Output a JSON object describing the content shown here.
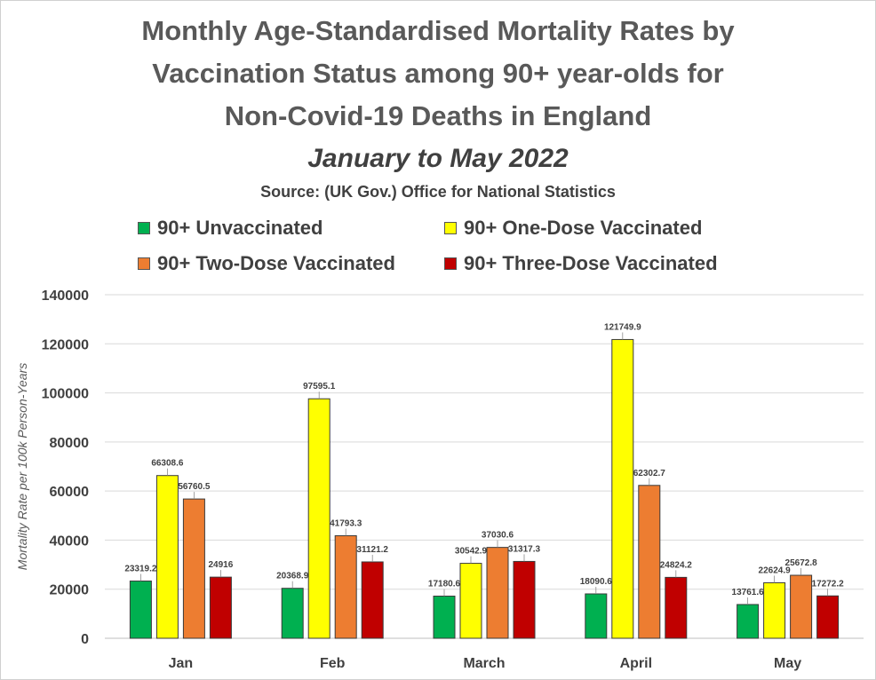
{
  "chart_data": {
    "type": "bar",
    "title_lines": [
      "Monthly Age-Standardised Mortality Rates by",
      "Vaccination Status among 90+ year-olds for",
      "Non-Covid-19 Deaths in England"
    ],
    "subtitle": "January to May 2022",
    "source": "Source: (UK Gov.) Office for National Statistics",
    "ylabel": "Mortality Rate per 100k Person-Years",
    "ylim": [
      0,
      140000
    ],
    "yticks": [
      0,
      20000,
      40000,
      60000,
      80000,
      100000,
      120000,
      140000
    ],
    "grid": true,
    "legend_position": "top",
    "categories": [
      "Jan",
      "Feb",
      "March",
      "April",
      "May"
    ],
    "series": [
      {
        "name": "90+ Unvaccinated",
        "color": "#00b050",
        "values": [
          23319.2,
          20368.9,
          17180.6,
          18090.6,
          13761.6
        ],
        "labels": [
          "23319.2",
          "20368.9",
          "17180.6",
          "18090.6",
          "13761.6"
        ]
      },
      {
        "name": "90+ One-Dose Vaccinated",
        "color": "#ffff00",
        "values": [
          66308.6,
          97595.1,
          30542.9,
          121749.9,
          22624.9
        ],
        "labels": [
          "66308.6",
          "97595.1",
          "30542.9",
          "121749.9",
          "22624.9"
        ]
      },
      {
        "name": "90+ Two-Dose Vaccinated",
        "color": "#ed7d31",
        "values": [
          56760.5,
          41793.3,
          37030.6,
          62302.7,
          25672.8
        ],
        "labels": [
          "56760.5",
          "41793.3",
          "37030.6",
          "62302.7",
          "25672.8"
        ]
      },
      {
        "name": "90+ Three-Dose Vaccinated",
        "color": "#c00000",
        "values": [
          24916,
          31121.2,
          31317.3,
          24824.2,
          17272.2
        ],
        "labels": [
          "24916",
          "31121.2",
          "31317.3",
          "24824.2",
          "17272.2"
        ]
      }
    ]
  }
}
